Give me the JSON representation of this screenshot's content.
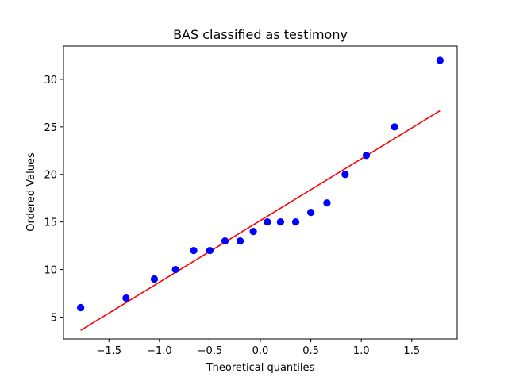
{
  "chart_data": {
    "type": "scatter",
    "title": "BAS classified as testimony",
    "xlabel": "Theoretical quantiles",
    "ylabel": "Ordered Values",
    "xlim": [
      -1.95,
      1.95
    ],
    "ylim": [
      2.7,
      33.5
    ],
    "xticks": [
      -1.5,
      -1.0,
      -0.5,
      0.0,
      0.5,
      1.0,
      1.5
    ],
    "xtick_labels": [
      "−1.5",
      "−1.0",
      "−0.5",
      "0.0",
      "0.5",
      "1.0",
      "1.5"
    ],
    "yticks": [
      5,
      10,
      15,
      20,
      25,
      30
    ],
    "ytick_labels": [
      "5",
      "10",
      "15",
      "20",
      "25",
      "30"
    ],
    "grid": false,
    "series": [
      {
        "type": "scatter",
        "color": "#0000ff",
        "x": [
          -1.78,
          -1.33,
          -1.05,
          -0.84,
          -0.66,
          -0.5,
          -0.35,
          -0.2,
          -0.07,
          0.07,
          0.2,
          0.35,
          0.5,
          0.66,
          0.84,
          1.05,
          1.33,
          1.78
        ],
        "y": [
          6,
          7,
          9,
          10,
          12,
          12,
          13,
          13,
          14,
          15,
          15,
          15,
          16,
          17,
          20,
          22,
          25,
          32
        ]
      },
      {
        "type": "line",
        "color": "#ff0000",
        "x": [
          -1.78,
          1.78
        ],
        "y": [
          3.6,
          26.7
        ]
      }
    ]
  }
}
